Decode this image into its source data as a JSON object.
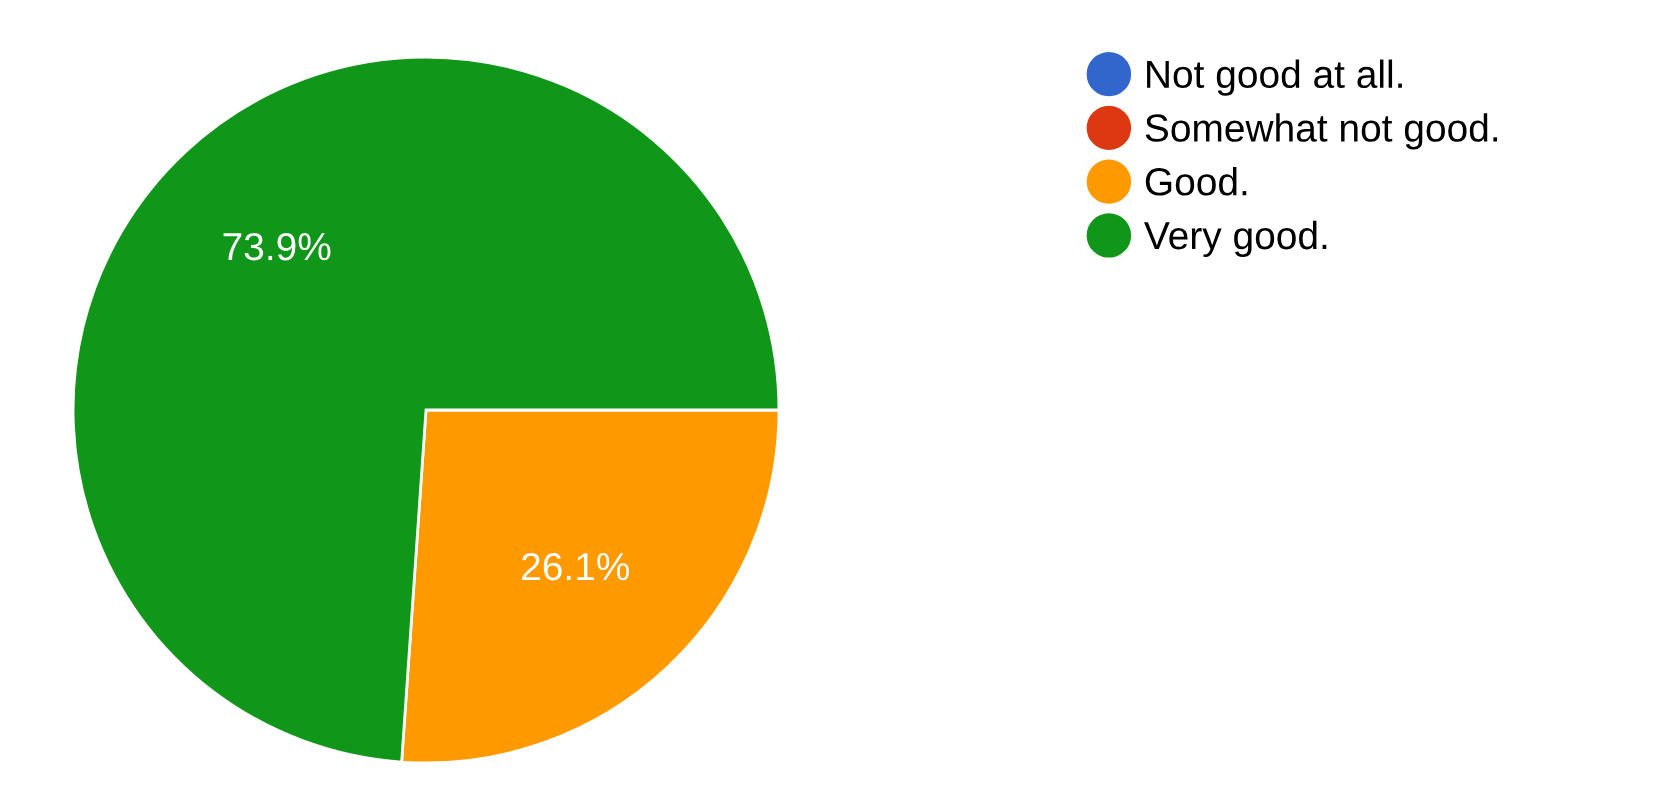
{
  "chart_data": {
    "type": "pie",
    "categories": [
      "Not good at all.",
      "Somewhat not good.",
      "Good.",
      "Very good."
    ],
    "values": [
      0,
      0,
      26.1,
      73.9
    ],
    "colors": [
      "#3366cc",
      "#dc3912",
      "#ff9900",
      "#109618"
    ],
    "value_labels": [
      null,
      null,
      "26.1%",
      "73.9%"
    ],
    "legend": "right"
  }
}
